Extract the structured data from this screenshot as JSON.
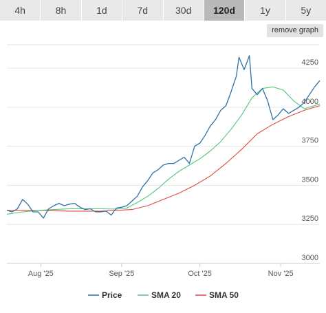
{
  "timeframes": {
    "tabs": [
      {
        "label": "4h"
      },
      {
        "label": "8h"
      },
      {
        "label": "1d"
      },
      {
        "label": "7d"
      },
      {
        "label": "30d"
      },
      {
        "label": "120d",
        "active": true
      },
      {
        "label": "1y"
      },
      {
        "label": "5y"
      }
    ]
  },
  "toolbar": {
    "remove_graph_label": "remove graph"
  },
  "colors": {
    "price": "#2f6fa8",
    "sma20": "#4cc77a",
    "sma50": "#e0483e",
    "grid": "#e6e6e6"
  },
  "chart_data": {
    "type": "line",
    "title": "",
    "xlabel": "",
    "ylabel": "",
    "ylim": [
      3000,
      4400
    ],
    "xlim": [
      "2025-07-19",
      "2025-11-16"
    ],
    "y_ticks": [
      3000,
      3250,
      3500,
      3750,
      4000,
      4250
    ],
    "x_ticks": [
      {
        "date": "2025-08-01",
        "label": "Aug '25"
      },
      {
        "date": "2025-09-01",
        "label": "Sep '25"
      },
      {
        "date": "2025-10-01",
        "label": "Oct '25"
      },
      {
        "date": "2025-11-01",
        "label": "Nov '25"
      }
    ],
    "grid": {
      "horizontal": true,
      "vertical": false
    },
    "legend_position": "bottom",
    "series": [
      {
        "name": "Price",
        "points": [
          [
            "2025-07-19",
            3340
          ],
          [
            "2025-07-21",
            3330
          ],
          [
            "2025-07-23",
            3350
          ],
          [
            "2025-07-25",
            3410
          ],
          [
            "2025-07-27",
            3380
          ],
          [
            "2025-07-29",
            3330
          ],
          [
            "2025-07-31",
            3330
          ],
          [
            "2025-08-02",
            3290
          ],
          [
            "2025-08-04",
            3350
          ],
          [
            "2025-08-06",
            3370
          ],
          [
            "2025-08-08",
            3385
          ],
          [
            "2025-08-10",
            3370
          ],
          [
            "2025-08-12",
            3380
          ],
          [
            "2025-08-14",
            3385
          ],
          [
            "2025-08-16",
            3360
          ],
          [
            "2025-08-18",
            3345
          ],
          [
            "2025-08-20",
            3350
          ],
          [
            "2025-08-22",
            3330
          ],
          [
            "2025-08-24",
            3330
          ],
          [
            "2025-08-26",
            3335
          ],
          [
            "2025-08-28",
            3310
          ],
          [
            "2025-08-30",
            3355
          ],
          [
            "2025-09-01",
            3360
          ],
          [
            "2025-09-03",
            3370
          ],
          [
            "2025-09-05",
            3400
          ],
          [
            "2025-09-07",
            3430
          ],
          [
            "2025-09-09",
            3490
          ],
          [
            "2025-09-11",
            3530
          ],
          [
            "2025-09-13",
            3580
          ],
          [
            "2025-09-15",
            3600
          ],
          [
            "2025-09-17",
            3630
          ],
          [
            "2025-09-19",
            3640
          ],
          [
            "2025-09-21",
            3640
          ],
          [
            "2025-09-23",
            3660
          ],
          [
            "2025-09-25",
            3680
          ],
          [
            "2025-09-27",
            3640
          ],
          [
            "2025-09-29",
            3750
          ],
          [
            "2025-10-01",
            3770
          ],
          [
            "2025-10-03",
            3820
          ],
          [
            "2025-10-05",
            3880
          ],
          [
            "2025-10-07",
            3920
          ],
          [
            "2025-10-09",
            3980
          ],
          [
            "2025-10-11",
            4010
          ],
          [
            "2025-10-13",
            4100
          ],
          [
            "2025-10-15",
            4200
          ],
          [
            "2025-10-16",
            4320
          ],
          [
            "2025-10-18",
            4240
          ],
          [
            "2025-10-20",
            4330
          ],
          [
            "2025-10-21",
            4120
          ],
          [
            "2025-10-23",
            4080
          ],
          [
            "2025-10-25",
            4120
          ],
          [
            "2025-10-27",
            4040
          ],
          [
            "2025-10-29",
            3920
          ],
          [
            "2025-10-31",
            3950
          ],
          [
            "2025-11-02",
            3990
          ],
          [
            "2025-11-04",
            3960
          ],
          [
            "2025-11-06",
            3980
          ],
          [
            "2025-11-08",
            4000
          ],
          [
            "2025-11-10",
            4030
          ],
          [
            "2025-11-12",
            4080
          ],
          [
            "2025-11-14",
            4130
          ],
          [
            "2025-11-16",
            4170
          ]
        ]
      },
      {
        "name": "SMA 20",
        "points": [
          [
            "2025-07-19",
            3315
          ],
          [
            "2025-07-25",
            3330
          ],
          [
            "2025-07-31",
            3340
          ],
          [
            "2025-08-06",
            3345
          ],
          [
            "2025-08-12",
            3350
          ],
          [
            "2025-08-18",
            3350
          ],
          [
            "2025-08-24",
            3350
          ],
          [
            "2025-08-30",
            3348
          ],
          [
            "2025-09-03",
            3355
          ],
          [
            "2025-09-07",
            3390
          ],
          [
            "2025-09-11",
            3430
          ],
          [
            "2025-09-15",
            3480
          ],
          [
            "2025-09-19",
            3540
          ],
          [
            "2025-09-23",
            3590
          ],
          [
            "2025-09-27",
            3630
          ],
          [
            "2025-10-01",
            3670
          ],
          [
            "2025-10-05",
            3720
          ],
          [
            "2025-10-09",
            3780
          ],
          [
            "2025-10-13",
            3860
          ],
          [
            "2025-10-17",
            3950
          ],
          [
            "2025-10-21",
            4060
          ],
          [
            "2025-10-25",
            4120
          ],
          [
            "2025-10-29",
            4130
          ],
          [
            "2025-11-02",
            4110
          ],
          [
            "2025-11-06",
            4040
          ],
          [
            "2025-11-10",
            3990
          ],
          [
            "2025-11-16",
            4020
          ]
        ]
      },
      {
        "name": "SMA 50",
        "points": [
          [
            "2025-07-19",
            3340
          ],
          [
            "2025-07-25",
            3340
          ],
          [
            "2025-07-31",
            3340
          ],
          [
            "2025-08-06",
            3338
          ],
          [
            "2025-08-12",
            3335
          ],
          [
            "2025-08-18",
            3335
          ],
          [
            "2025-08-24",
            3335
          ],
          [
            "2025-08-30",
            3340
          ],
          [
            "2025-09-05",
            3345
          ],
          [
            "2025-09-11",
            3370
          ],
          [
            "2025-09-17",
            3410
          ],
          [
            "2025-09-23",
            3450
          ],
          [
            "2025-09-29",
            3500
          ],
          [
            "2025-10-05",
            3560
          ],
          [
            "2025-10-11",
            3640
          ],
          [
            "2025-10-17",
            3730
          ],
          [
            "2025-10-23",
            3830
          ],
          [
            "2025-10-29",
            3890
          ],
          [
            "2025-11-04",
            3940
          ],
          [
            "2025-11-10",
            3980
          ],
          [
            "2025-11-16",
            4010
          ]
        ]
      }
    ]
  }
}
